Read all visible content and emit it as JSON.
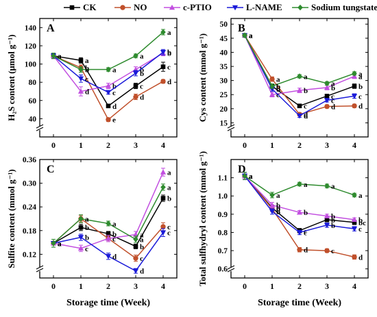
{
  "legend": [
    {
      "name": "CK",
      "color": "#000000",
      "marker": "square"
    },
    {
      "name": "NO",
      "color": "#c0502b",
      "marker": "circle"
    },
    {
      "name": "c-PTIO",
      "color": "#c24fe0",
      "marker": "triangle-up"
    },
    {
      "name": "L-NAME",
      "color": "#1a1ad9",
      "marker": "triangle-down"
    },
    {
      "name": "Sodium tungstate",
      "color": "#2e8b2e",
      "marker": "diamond"
    }
  ],
  "shared_xlabel": "Storage time (Week)",
  "chart_data": [
    {
      "panel": "A",
      "type": "line",
      "ylabel": "H₂S content  (μmol g⁻¹)",
      "x": [
        0,
        1,
        2,
        3,
        4
      ],
      "xticks": [
        "0",
        "1",
        "2",
        "3",
        "4"
      ],
      "ylim": [
        20,
        150
      ],
      "yticks": [
        "40",
        "60",
        "80",
        "100",
        "120",
        "140"
      ],
      "ytick_values": [
        40,
        60,
        80,
        100,
        120,
        140
      ],
      "axis_break": true,
      "series": [
        {
          "name": "CK",
          "values": [
            109,
            104,
            54,
            76,
            97
          ],
          "errors": [
            3,
            3,
            2,
            3,
            5
          ],
          "letters": [
            "a",
            "a",
            "d",
            "c",
            "c"
          ]
        },
        {
          "name": "NO",
          "values": [
            109,
            96,
            39,
            64,
            81
          ],
          "errors": [
            3,
            3,
            2,
            3,
            2
          ],
          "letters": [
            "a",
            "b",
            "e",
            "d",
            "d"
          ]
        },
        {
          "name": "c-PTIO",
          "values": [
            109,
            70,
            76,
            94,
            112
          ],
          "errors": [
            3,
            5,
            3,
            3,
            3
          ],
          "letters": [
            "a",
            "d",
            "b",
            "b",
            "b"
          ]
        },
        {
          "name": "L-NAME",
          "values": [
            109,
            84,
            69,
            90,
            113
          ],
          "errors": [
            3,
            4,
            2,
            3,
            3
          ],
          "letters": [
            "a",
            "c",
            "c",
            "b",
            "b"
          ]
        },
        {
          "name": "Sodium tungstate",
          "values": [
            109,
            94,
            94,
            109,
            135
          ],
          "errors": [
            3,
            3,
            2,
            2,
            3
          ],
          "letters": [
            "a",
            "b",
            "a",
            "a",
            "a"
          ]
        }
      ]
    },
    {
      "panel": "B",
      "type": "line",
      "ylabel": "Cys content  (mmol g⁻¹)",
      "x": [
        0,
        1,
        2,
        3,
        4
      ],
      "xticks": [
        "0",
        "1",
        "2",
        "3",
        "4"
      ],
      "ylim": [
        10,
        52
      ],
      "yticks": [
        "15",
        "20",
        "25",
        "30",
        "35",
        "40",
        "45",
        "50"
      ],
      "ytick_values": [
        15,
        20,
        25,
        30,
        35,
        40,
        45,
        50
      ],
      "axis_break": true,
      "series": [
        {
          "name": "CK",
          "values": [
            46,
            28,
            21,
            24.5,
            28
          ],
          "errors": [
            0.6,
            0.8,
            0.6,
            0.6,
            0.8
          ],
          "letters": [
            "a",
            "b",
            "c",
            "c",
            "b"
          ]
        },
        {
          "name": "NO",
          "values": [
            46,
            30.5,
            18,
            20.8,
            21
          ],
          "errors": [
            0.6,
            0.8,
            0.6,
            0.6,
            0.6
          ],
          "letters": [
            "a",
            "a",
            "d",
            "d",
            "d"
          ]
        },
        {
          "name": "c-PTIO",
          "values": [
            46,
            25,
            26.5,
            27.5,
            31.5
          ],
          "errors": [
            0.6,
            0.8,
            0.8,
            0.8,
            0.8
          ],
          "letters": [
            "a",
            "c",
            "b",
            "b",
            "a"
          ]
        },
        {
          "name": "L-NAME",
          "values": [
            46,
            27,
            17.5,
            23,
            24.5
          ],
          "errors": [
            0.6,
            0.8,
            0.6,
            0.6,
            0.8
          ],
          "letters": [
            "a",
            "b",
            "d",
            "c",
            "c"
          ]
        },
        {
          "name": "Sodium tungstate",
          "values": [
            46,
            28,
            31.5,
            29,
            32.5
          ],
          "errors": [
            0.6,
            0.8,
            0.6,
            0.6,
            0.6
          ],
          "letters": [
            "a",
            "b",
            "a",
            "a",
            "a"
          ]
        }
      ]
    },
    {
      "panel": "C",
      "type": "line",
      "ylabel": "Sulfite content  (mmol g⁻¹)",
      "x": [
        0,
        1,
        2,
        3,
        4
      ],
      "xticks": [
        "0",
        "1",
        "2",
        "3",
        "4"
      ],
      "ylim": [
        0.06,
        0.36
      ],
      "yticks": [
        "0.12",
        "0.18",
        "0.24",
        "0.30",
        "0.36"
      ],
      "ytick_values": [
        0.12,
        0.18,
        0.24,
        0.3,
        0.36
      ],
      "axis_break": true,
      "series": [
        {
          "name": "CK",
          "values": [
            0.148,
            0.188,
            0.172,
            0.14,
            0.262
          ],
          "errors": [
            0.01,
            0.008,
            0.006,
            0.006,
            0.008
          ],
          "letters": [
            "a",
            "b",
            "b",
            "b",
            "b"
          ]
        },
        {
          "name": "NO",
          "values": [
            0.148,
            0.21,
            0.16,
            0.11,
            0.19
          ],
          "errors": [
            0.01,
            0.008,
            0.008,
            0.008,
            0.01
          ],
          "letters": [
            "a",
            "a",
            "c",
            "c",
            "c"
          ]
        },
        {
          "name": "c-PTIO",
          "values": [
            0.148,
            0.135,
            0.16,
            0.17,
            0.328
          ],
          "errors": [
            0.01,
            0.008,
            0.008,
            0.008,
            0.01
          ],
          "letters": [
            "a",
            "c",
            "c",
            "a",
            "a"
          ]
        },
        {
          "name": "L-NAME",
          "values": [
            0.148,
            0.163,
            0.115,
            0.078,
            0.175
          ],
          "errors": [
            0.01,
            0.008,
            0.008,
            0.006,
            0.01
          ],
          "letters": [
            "a",
            "b",
            "d",
            "d",
            "c"
          ]
        },
        {
          "name": "Sodium tungstate",
          "values": [
            0.148,
            0.21,
            0.198,
            0.158,
            0.29
          ],
          "errors": [
            0.01,
            0.01,
            0.006,
            0.008,
            0.008
          ],
          "letters": [
            "a",
            "a",
            "a",
            "a",
            "a"
          ]
        }
      ]
    },
    {
      "panel": "D",
      "type": "line",
      "ylabel": "Total sulfhydryl content  (mmol g⁻¹)",
      "x": [
        0,
        1,
        2,
        3,
        4
      ],
      "xticks": [
        "0",
        "1",
        "2",
        "3",
        "4"
      ],
      "ylim": [
        0.55,
        1.2
      ],
      "yticks": [
        "0.6",
        "0.7",
        "0.8",
        "0.9",
        "1.0",
        "1.1"
      ],
      "ytick_values": [
        0.6,
        0.7,
        0.8,
        0.9,
        1.0,
        1.1
      ],
      "axis_break": true,
      "series": [
        {
          "name": "CK",
          "values": [
            1.11,
            0.935,
            0.81,
            0.87,
            0.855
          ],
          "errors": [
            0.02,
            0.015,
            0.012,
            0.012,
            0.012
          ],
          "letters": [
            "a",
            "b",
            "c",
            "b",
            "bc"
          ]
        },
        {
          "name": "NO",
          "values": [
            1.11,
            0.93,
            0.705,
            0.7,
            0.665
          ],
          "errors": [
            0.02,
            0.015,
            0.012,
            0.01,
            0.012
          ],
          "letters": [
            "a",
            "b",
            "d",
            "c",
            "d"
          ]
        },
        {
          "name": "c-PTIO",
          "values": [
            1.11,
            0.95,
            0.91,
            0.89,
            0.87
          ],
          "errors": [
            0.02,
            0.015,
            0.01,
            0.01,
            0.01
          ],
          "letters": [
            "a",
            "b",
            "b",
            "b",
            "b"
          ]
        },
        {
          "name": "L-NAME",
          "values": [
            1.11,
            0.915,
            0.8,
            0.84,
            0.82
          ],
          "errors": [
            0.02,
            0.015,
            0.012,
            0.012,
            0.012
          ],
          "letters": [
            "a",
            "b",
            "c",
            "b",
            "c"
          ]
        },
        {
          "name": "Sodium tungstate",
          "values": [
            1.11,
            1.005,
            1.065,
            1.055,
            1.005
          ],
          "errors": [
            0.02,
            0.015,
            0.01,
            0.01,
            0.01
          ],
          "letters": [
            "a",
            "a",
            "a",
            "a",
            "a"
          ]
        }
      ]
    }
  ]
}
